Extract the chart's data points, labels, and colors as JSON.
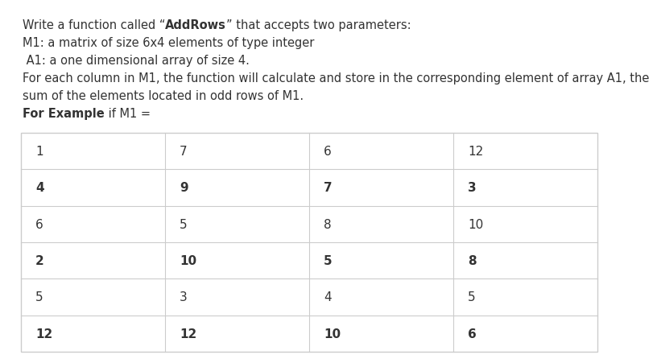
{
  "line1_pre": "Write a function called “",
  "line1_bold": "AddRows",
  "line1_post": "” that accepts two parameters:",
  "lines": [
    "M1: a matrix of size 6x4 elements of type integer",
    " A1: a one dimensional array of size 4.",
    "For each column in M1, the function will calculate and store in the corresponding element of array A1, the",
    "sum of the elements located in odd rows of M1."
  ],
  "example_bold": "For Example",
  "example_normal": " if M1 =",
  "matrix": [
    [
      1,
      7,
      6,
      12
    ],
    [
      4,
      9,
      7,
      3
    ],
    [
      6,
      5,
      8,
      10
    ],
    [
      2,
      10,
      5,
      8
    ],
    [
      5,
      3,
      4,
      5
    ],
    [
      12,
      12,
      10,
      6
    ]
  ],
  "bold_rows": [
    1,
    3,
    5
  ],
  "bg_color": "#ffffff",
  "text_color": "#333333",
  "border_color": "#cccccc",
  "left_accent_color": "#7B4FA6",
  "font_size": 10.5,
  "table_font_size": 11
}
